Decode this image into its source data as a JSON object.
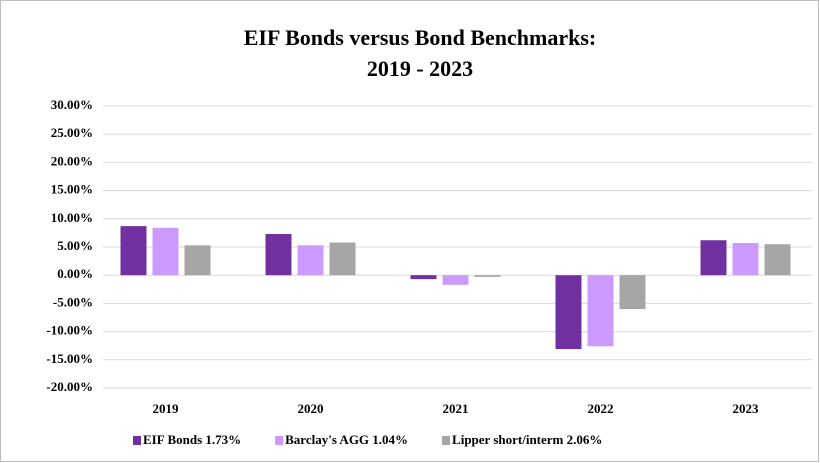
{
  "chart_data": {
    "type": "bar",
    "title": [
      "EIF Bonds versus Bond Benchmarks:",
      "2019 - 2023"
    ],
    "categories": [
      "2019",
      "2020",
      "2021",
      "2022",
      "2023"
    ],
    "series": [
      {
        "name": "EIF Bonds 1.73%",
        "color": "#7030a0",
        "values": [
          8.7,
          7.3,
          -0.7,
          -13.1,
          6.2
        ]
      },
      {
        "name": "Barclay's AGG 1.04%",
        "color": "#cc99ff",
        "values": [
          8.4,
          5.3,
          -1.7,
          -12.6,
          5.7
        ]
      },
      {
        "name": "Lipper short/interm 2.06%",
        "color": "#a6a6a6",
        "values": [
          5.3,
          5.8,
          -0.3,
          -6.0,
          5.5
        ]
      }
    ],
    "ylim": [
      -20,
      30
    ],
    "yticks": [
      {
        "value": -20,
        "label": "-20.00%"
      },
      {
        "value": -15,
        "label": "-15.00%"
      },
      {
        "value": -10,
        "label": "-10.00%"
      },
      {
        "value": -5,
        "label": "-5.00%"
      },
      {
        "value": 0,
        "label": "0.00%"
      },
      {
        "value": 5,
        "label": "5.00%"
      },
      {
        "value": 10,
        "label": "10.00%"
      },
      {
        "value": 15,
        "label": "15.00%"
      },
      {
        "value": 20,
        "label": "20.00%"
      },
      {
        "value": 25,
        "label": "25.00%"
      },
      {
        "value": 30,
        "label": "30.00%"
      }
    ],
    "grid": true,
    "legend": "bottom"
  }
}
